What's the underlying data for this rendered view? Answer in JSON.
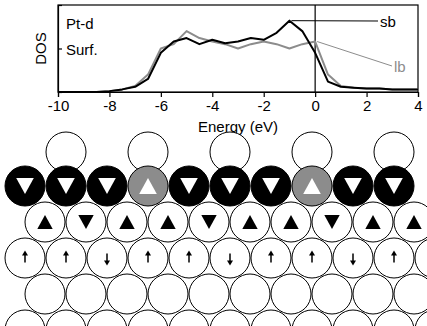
{
  "chart_data": {
    "type": "line",
    "x_label": "Energy (eV)",
    "y_label": "DOS",
    "annotations": [
      "Pt-d",
      "Surf."
    ],
    "x": [
      -10,
      -9.5,
      -9,
      -8.5,
      -8,
      -7.5,
      -7,
      -6.5,
      -6,
      -5.5,
      -5,
      -4.5,
      -4,
      -3.5,
      -3,
      -2.5,
      -2,
      -1.5,
      -1,
      -0.5,
      0,
      0.5,
      1,
      1.5,
      2,
      2.5,
      3,
      3.5,
      4
    ],
    "series": [
      {
        "name": "sb",
        "color": "#000000",
        "values": [
          0,
          0,
          0,
          0,
          0.01,
          0.03,
          0.06,
          0.15,
          0.45,
          0.58,
          0.62,
          0.55,
          0.6,
          0.56,
          0.58,
          0.62,
          0.6,
          0.68,
          0.82,
          0.7,
          0.45,
          0.12,
          0.06,
          0.05,
          0.04,
          0.04,
          0.03,
          0.03,
          0.03
        ]
      },
      {
        "name": "lb",
        "color": "#8c8c8c",
        "values": [
          0,
          0,
          0,
          0,
          0.01,
          0.03,
          0.07,
          0.2,
          0.5,
          0.55,
          0.7,
          0.62,
          0.58,
          0.55,
          0.5,
          0.55,
          0.58,
          0.55,
          0.5,
          0.55,
          0.58,
          0.2,
          0.07,
          0.05,
          0.04,
          0.04,
          0.03,
          0.03,
          0.03
        ]
      }
    ],
    "xlim": [
      -10,
      4
    ],
    "xticks": [
      -10,
      -8,
      -6,
      -4,
      -2,
      0,
      2,
      4
    ],
    "ylim": [
      0,
      1
    ],
    "yticks": [
      0,
      0.5,
      1
    ],
    "tick_labels": "x",
    "fermi_level": 0
  }
}
